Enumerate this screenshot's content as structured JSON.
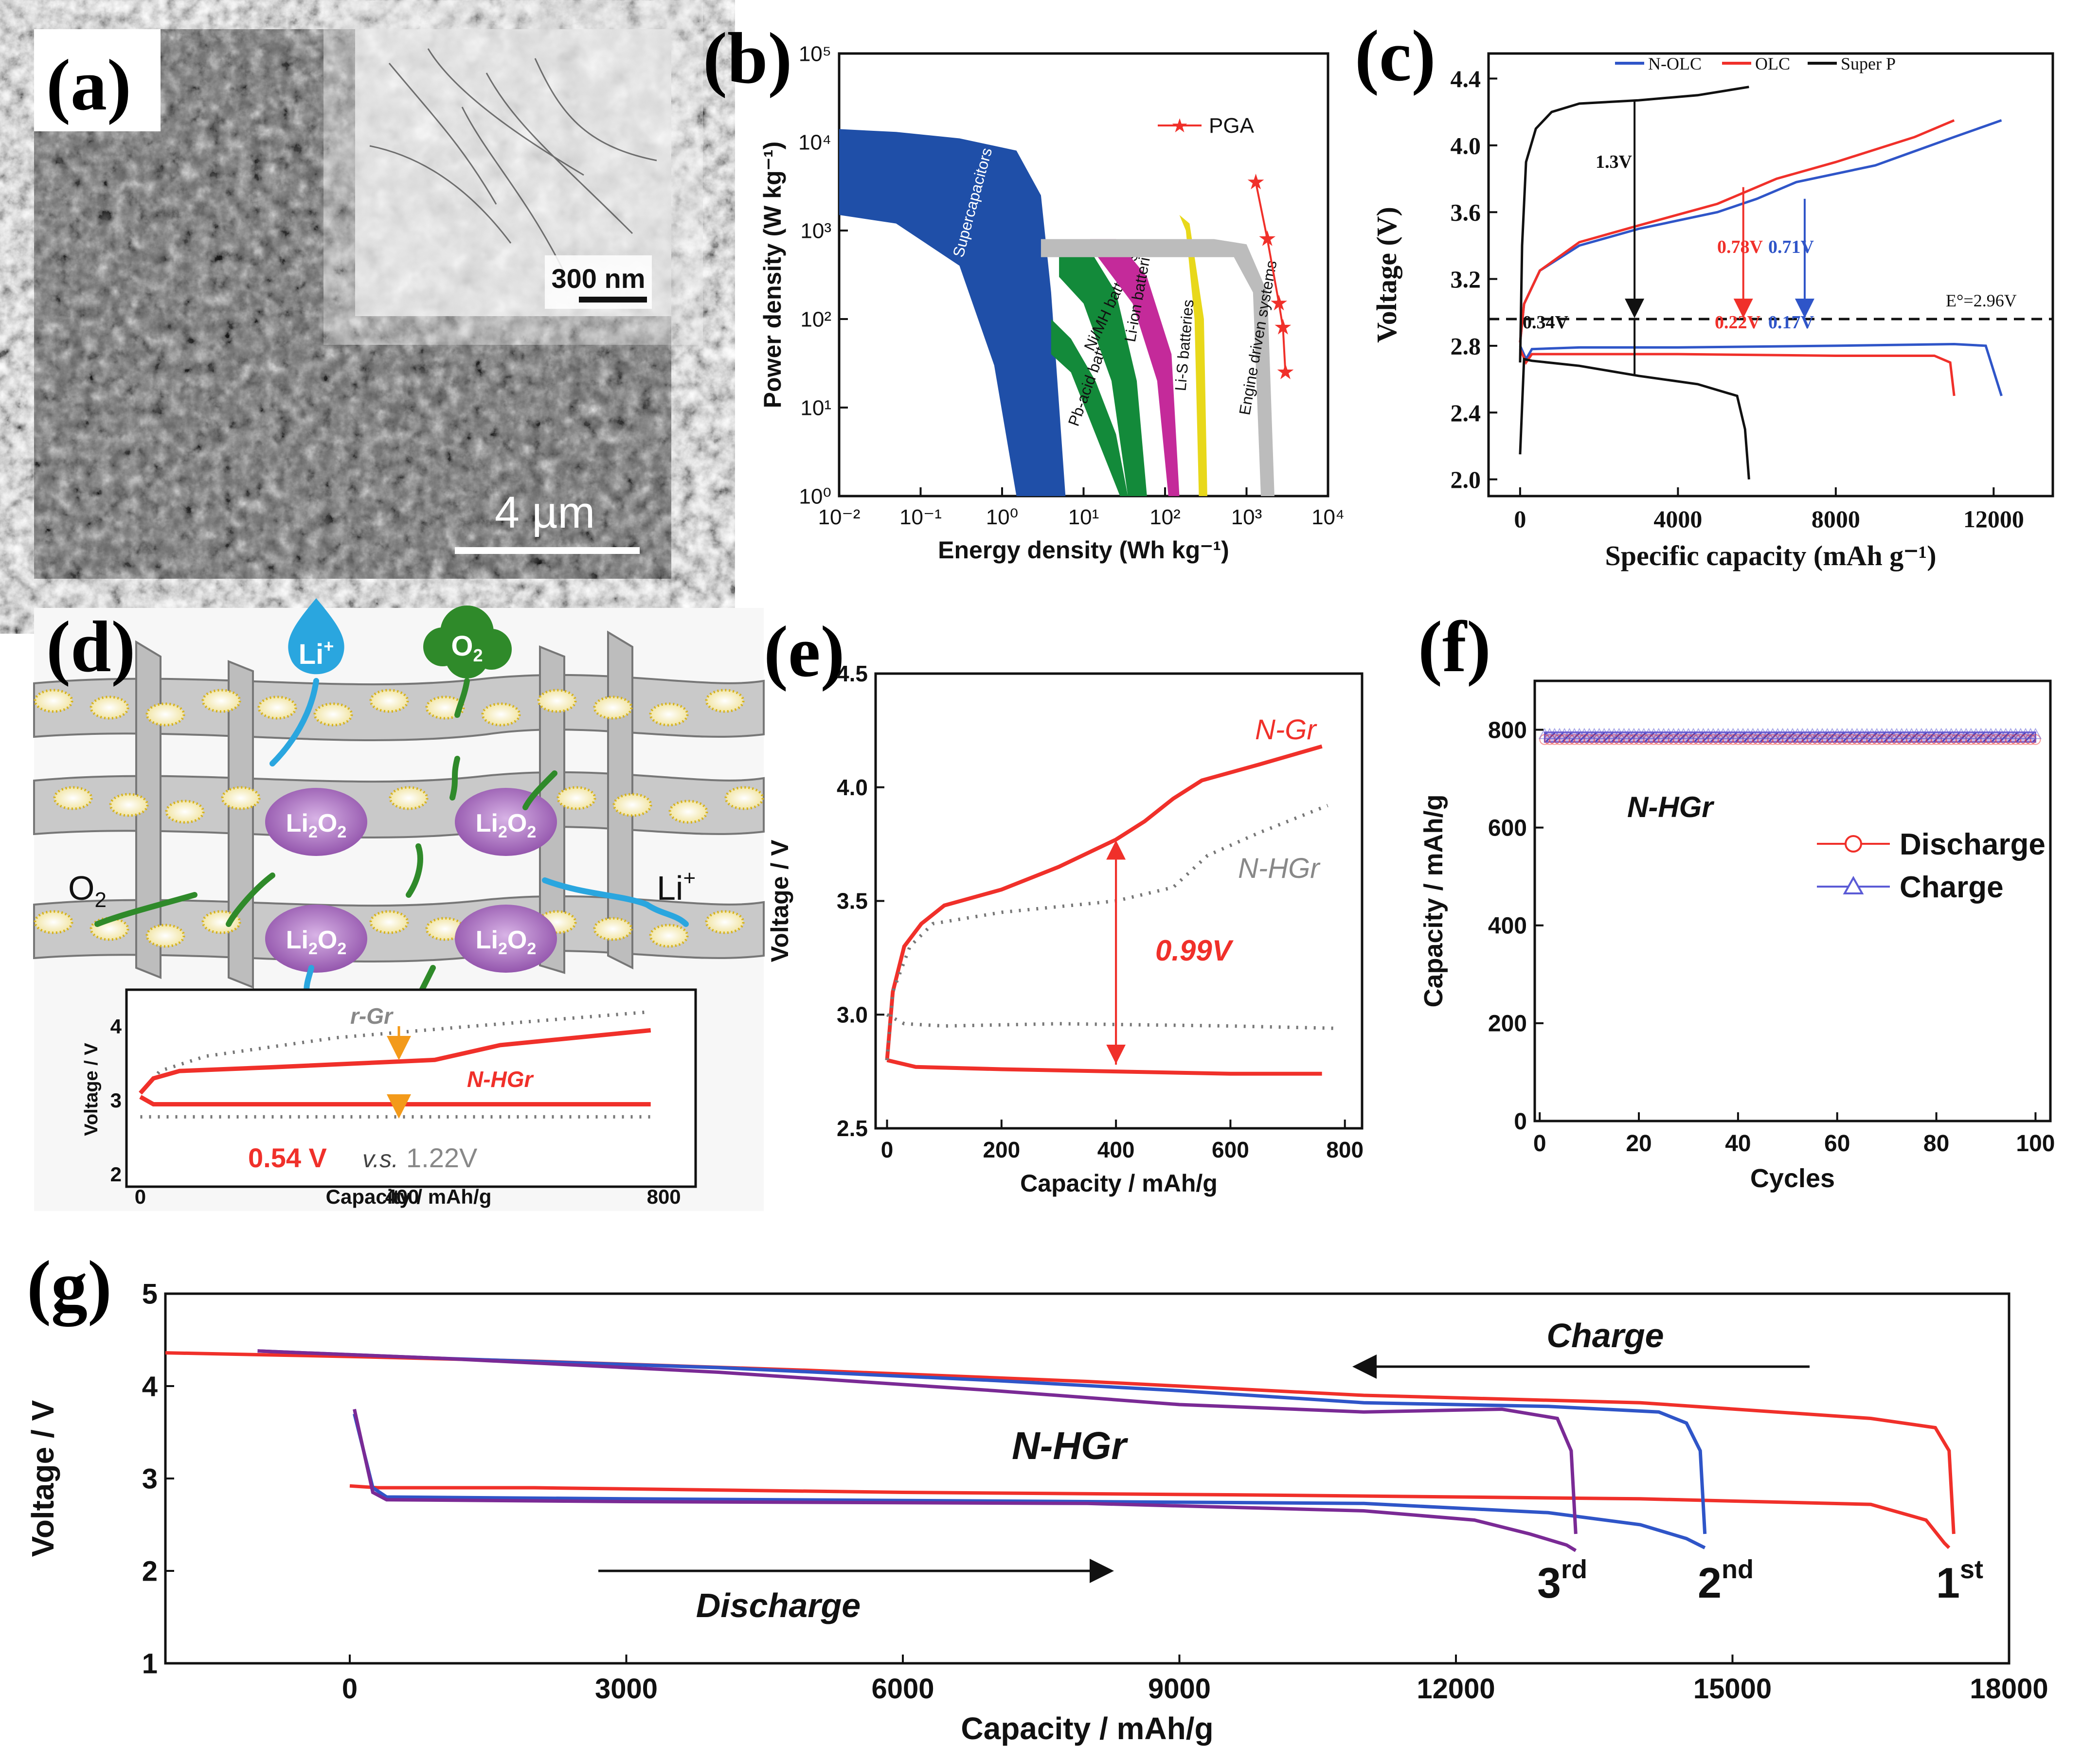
{
  "panel_labels": [
    "(a)",
    "(b)",
    "(c)",
    "(d)",
    "(e)",
    "(f)",
    "(g)"
  ],
  "panel_a": {
    "scale_bar_main": "4 µm",
    "scale_bar_inset": "300 nm"
  },
  "colors": {
    "red": "#f0302a",
    "blue": "#2f55c8",
    "black": "#111111",
    "purple": "#7a2a95",
    "gray": "#777777",
    "supercap": "#1f4fa8",
    "green": "#138a3a",
    "magenta": "#c42a9a",
    "yellow": "#e8d81a",
    "engine_gray": "#bcbcbc",
    "violet_bg": "#b48acb"
  },
  "chart_data": [
    {
      "id": "b",
      "type": "area",
      "xscale": "log",
      "yscale": "log",
      "xlabel": "Energy density (Wh kg⁻¹)",
      "ylabel": "Power density (W kg⁻¹)",
      "xlim": [
        0.01,
        10000
      ],
      "ylim": [
        1,
        100000
      ],
      "xticks": [
        "10⁻²",
        "10⁻¹",
        "10⁰",
        "10¹",
        "10²",
        "10³",
        "10⁴"
      ],
      "yticks": [
        "10⁰",
        "10¹",
        "10²",
        "10³",
        "10⁴",
        "10⁵"
      ],
      "regions": [
        {
          "name": "Supercapacitors",
          "color": "#1f4fa8",
          "points": [
            [
              0.01,
              14000
            ],
            [
              0.05,
              13000
            ],
            [
              0.3,
              11000
            ],
            [
              1.5,
              8000
            ],
            [
              3,
              2500
            ],
            [
              4,
              200
            ],
            [
              6,
              1
            ],
            [
              1.5,
              1
            ],
            [
              0.8,
              30
            ],
            [
              0.3,
              400
            ],
            [
              0.05,
              1200
            ],
            [
              0.01,
              1500
            ]
          ]
        },
        {
          "name": "Pb-acid batteries",
          "color": "#138a3a",
          "points": [
            [
              4,
              100
            ],
            [
              7,
              60
            ],
            [
              14,
              20
            ],
            [
              25,
              5
            ],
            [
              35,
              1
            ],
            [
              28,
              1
            ],
            [
              14,
              5
            ],
            [
              7,
              25
            ],
            [
              4,
              40
            ]
          ]
        },
        {
          "name": "Ni/MH batteries",
          "color": "#138a3a",
          "points": [
            [
              5,
              600
            ],
            [
              12,
              600
            ],
            [
              25,
              200
            ],
            [
              45,
              20
            ],
            [
              60,
              1
            ],
            [
              35,
              1
            ],
            [
              22,
              20
            ],
            [
              10,
              150
            ],
            [
              5,
              300
            ]
          ]
        },
        {
          "name": "Li-ion batteries",
          "color": "#c42a9a",
          "points": [
            [
              12,
              800
            ],
            [
              25,
              800
            ],
            [
              60,
              300
            ],
            [
              120,
              40
            ],
            [
              150,
              1
            ],
            [
              110,
              1
            ],
            [
              80,
              20
            ],
            [
              40,
              150
            ],
            [
              15,
              500
            ]
          ]
        },
        {
          "name": "Li-S batteries",
          "color": "#e8d81a",
          "points": [
            [
              150,
              1500
            ],
            [
              200,
              1200
            ],
            [
              300,
              100
            ],
            [
              330,
              1
            ],
            [
              260,
              1
            ],
            [
              230,
              100
            ],
            [
              180,
              1000
            ]
          ]
        },
        {
          "name": "Engine driven systems",
          "color": "#bcbcbc",
          "points": [
            [
              3,
              800
            ],
            [
              400,
              800
            ],
            [
              1000,
              700
            ],
            [
              1800,
              200
            ],
            [
              2200,
              1
            ],
            [
              1500,
              1
            ],
            [
              1200,
              200
            ],
            [
              700,
              500
            ],
            [
              3,
              500
            ]
          ]
        }
      ],
      "series": [
        {
          "name": "PGA",
          "color": "#f0302a",
          "marker": "star",
          "x": [
            1300,
            1800,
            2500,
            2800,
            3000
          ],
          "y": [
            3500,
            800,
            150,
            80,
            25
          ]
        }
      ],
      "legend": "top-right"
    },
    {
      "id": "c",
      "type": "line",
      "xlabel": "Specific capacity (mAh g⁻¹)",
      "ylabel": "Voltage (V)",
      "xlim": [
        -800,
        13500
      ],
      "ylim": [
        1.9,
        4.55
      ],
      "xticks": [
        0,
        4000,
        8000,
        12000
      ],
      "yticks": [
        2.0,
        2.4,
        2.8,
        3.2,
        3.6,
        4.0,
        4.4
      ],
      "legend_pos": "top-right",
      "series": [
        {
          "name": "N-OLC",
          "color": "#2f55c8",
          "discharge": {
            "x": [
              0,
              150,
              300,
              1500,
              4000,
              8000,
              11000,
              11800,
              12000,
              12200
            ],
            "y": [
              2.8,
              2.72,
              2.78,
              2.79,
              2.79,
              2.8,
              2.81,
              2.8,
              2.65,
              2.5
            ]
          },
          "charge": {
            "x": [
              0,
              100,
              500,
              1500,
              3000,
              5000,
              6000,
              7000,
              9000,
              11000,
              12200
            ],
            "y": [
              2.82,
              3.05,
              3.25,
              3.4,
              3.5,
              3.6,
              3.68,
              3.78,
              3.88,
              4.05,
              4.15
            ]
          }
        },
        {
          "name": "OLC",
          "color": "#f0302a",
          "discharge": {
            "x": [
              0,
              150,
              300,
              1500,
              4000,
              8000,
              10500,
              10900,
              11000
            ],
            "y": [
              2.78,
              2.7,
              2.75,
              2.75,
              2.75,
              2.74,
              2.74,
              2.7,
              2.5
            ]
          },
          "charge": {
            "x": [
              0,
              100,
              500,
              1500,
              3000,
              5000,
              6500,
              8000,
              10000,
              11000
            ],
            "y": [
              2.82,
              3.05,
              3.25,
              3.42,
              3.52,
              3.65,
              3.8,
              3.9,
              4.05,
              4.15
            ]
          }
        },
        {
          "name": "Super P",
          "color": "#111111",
          "discharge": {
            "x": [
              0,
              100,
              300,
              1500,
              3000,
              4500,
              5500,
              5700,
              5800
            ],
            "y": [
              2.15,
              2.72,
              2.71,
              2.68,
              2.62,
              2.57,
              2.5,
              2.3,
              2.0
            ]
          },
          "charge": {
            "x": [
              0,
              50,
              150,
              400,
              800,
              1500,
              3000,
              4500,
              5800
            ],
            "y": [
              2.7,
              3.4,
              3.9,
              4.1,
              4.2,
              4.25,
              4.27,
              4.3,
              4.35
            ]
          }
        }
      ],
      "hline": {
        "y": 2.96,
        "label": "E°=2.96V"
      },
      "annotations": [
        {
          "text": "1.3V",
          "color": "#111111"
        },
        {
          "text": "0.34V",
          "color": "#111111"
        },
        {
          "text": "0.78V",
          "color": "#f0302a"
        },
        {
          "text": "0.22V",
          "color": "#f0302a"
        },
        {
          "text": "0.71V",
          "color": "#2f55c8"
        },
        {
          "text": "0.17V",
          "color": "#2f55c8"
        }
      ]
    },
    {
      "id": "d_inset",
      "type": "line",
      "xlabel": "Capacity / mAh/g",
      "ylabel": "Voltage / V",
      "xlim": [
        -10,
        830
      ],
      "ylim": [
        2,
        4.4
      ],
      "xticks": [
        0,
        400,
        800
      ],
      "yticks": [
        2,
        3,
        4
      ],
      "series": [
        {
          "name": "r-Gr",
          "color": "#777777",
          "dotted": true,
          "charge": {
            "x": [
              0,
              30,
              100,
              300,
              500,
              780
            ],
            "y": [
              3.1,
              3.4,
              3.6,
              3.85,
              4.0,
              4.2
            ]
          },
          "discharge": {
            "x": [
              0,
              100,
              400,
              780
            ],
            "y": [
              2.78,
              2.78,
              2.78,
              2.78
            ]
          }
        },
        {
          "name": "N-HGr",
          "color": "#f0302a",
          "charge": {
            "x": [
              0,
              20,
              60,
              200,
              450,
              550,
              780
            ],
            "y": [
              3.1,
              3.3,
              3.4,
              3.45,
              3.55,
              3.75,
              3.95
            ]
          },
          "discharge": {
            "x": [
              0,
              20,
              200,
              780
            ],
            "y": [
              3.05,
              2.95,
              2.95,
              2.95
            ]
          }
        }
      ],
      "annotations": [
        {
          "text": "0.54 V",
          "color": "#f0302a"
        },
        {
          "text": "v.s.",
          "color": "#444444"
        },
        {
          "text": "1.22V",
          "color": "#888888"
        }
      ]
    },
    {
      "id": "e",
      "type": "line",
      "xlabel": "Capacity / mAh/g",
      "ylabel": "Voltage / V",
      "xlim": [
        -20,
        830
      ],
      "ylim": [
        2.5,
        4.5
      ],
      "xticks": [
        0,
        200,
        400,
        600,
        800
      ],
      "yticks": [
        2.5,
        3.0,
        3.5,
        4.0,
        4.5
      ],
      "series": [
        {
          "name": "N-Gr",
          "color": "#f0302a",
          "charge": {
            "x": [
              0,
              10,
              30,
              60,
              100,
              200,
              300,
              400,
              450,
              500,
              550,
              650,
              760
            ],
            "y": [
              2.8,
              3.1,
              3.3,
              3.4,
              3.48,
              3.55,
              3.65,
              3.77,
              3.85,
              3.95,
              4.03,
              4.1,
              4.18
            ]
          },
          "discharge": {
            "x": [
              0,
              50,
              200,
              400,
              600,
              760
            ],
            "y": [
              2.8,
              2.77,
              2.76,
              2.75,
              2.74,
              2.74
            ]
          }
        },
        {
          "name": "N-HGr",
          "color": "#777777",
          "dotted": true,
          "charge": {
            "x": [
              0,
              10,
              40,
              80,
              200,
              400,
              500,
              560,
              650,
              770
            ],
            "y": [
              2.8,
              3.1,
              3.3,
              3.4,
              3.45,
              3.5,
              3.56,
              3.7,
              3.8,
              3.92
            ]
          },
          "discharge": {
            "x": [
              0,
              30,
              100,
              300,
              600,
              780
            ],
            "y": [
              3.0,
              2.96,
              2.95,
              2.96,
              2.95,
              2.94
            ]
          }
        }
      ],
      "annotations": [
        {
          "text": "0.99V",
          "color": "#f0302a"
        }
      ]
    },
    {
      "id": "f",
      "type": "scatter",
      "xlabel": "Cycles",
      "ylabel": "Capacity / mAh/g",
      "xlim": [
        -1,
        103
      ],
      "ylim": [
        0,
        900
      ],
      "xticks": [
        0,
        20,
        40,
        60,
        80,
        100
      ],
      "yticks": [
        0,
        200,
        400,
        600,
        800
      ],
      "title_in_plot": "N-HGr",
      "legend_pos": "right",
      "series": [
        {
          "name": "Discharge",
          "color": "#f0302a",
          "marker": "circle",
          "x_range": [
            1,
            100
          ],
          "value": 780
        },
        {
          "name": "Charge",
          "color": "#5b5bd6",
          "marker": "triangle",
          "x_range": [
            1,
            100
          ],
          "value": 790
        }
      ]
    },
    {
      "id": "g",
      "type": "line",
      "xlabel": "Capacity / mAh/g",
      "ylabel": "Voltage / V",
      "xlim": [
        -2000,
        18000
      ],
      "ylim": [
        1,
        5
      ],
      "xticks": [
        0,
        3000,
        6000,
        9000,
        12000,
        15000,
        18000
      ],
      "yticks": [
        1,
        2,
        3,
        4,
        5
      ],
      "title_in_plot": "N-HGr",
      "arrows": [
        {
          "text": "Charge",
          "direction": "left"
        },
        {
          "text": "Discharge",
          "direction": "right"
        }
      ],
      "series": [
        {
          "name": "1st",
          "label_main": "1",
          "label_sup": "st",
          "color": "#f0302a",
          "discharge": {
            "x": [
              0,
              300,
              2000,
              6000,
              10000,
              14000,
              16500,
              17100,
              17300,
              17350
            ],
            "y": [
              2.92,
              2.9,
              2.9,
              2.85,
              2.82,
              2.78,
              2.72,
              2.55,
              2.3,
              2.25
            ]
          },
          "charge": {
            "x": [
              17400,
              17350,
              17200,
              16500,
              14000,
              11000,
              8000,
              5000,
              2000,
              0,
              -2000
            ],
            "y": [
              2.4,
              3.3,
              3.55,
              3.65,
              3.82,
              3.9,
              4.05,
              4.17,
              4.27,
              4.32,
              4.36
            ]
          }
        },
        {
          "name": "2nd",
          "label_main": "2",
          "label_sup": "nd",
          "color": "#2f55c8",
          "discharge": {
            "x": [
              50,
              250,
              400,
              3000,
              8000,
              11000,
              13000,
              14000,
              14500,
              14700
            ],
            "y": [
              3.7,
              2.9,
              2.8,
              2.78,
              2.75,
              2.73,
              2.63,
              2.5,
              2.35,
              2.25
            ]
          },
          "charge": {
            "x": [
              14700,
              14650,
              14500,
              14200,
              13000,
              11000,
              9000,
              7000,
              4000,
              1000,
              -1000
            ],
            "y": [
              2.4,
              3.3,
              3.6,
              3.72,
              3.78,
              3.82,
              3.95,
              4.06,
              4.2,
              4.3,
              4.38
            ]
          }
        },
        {
          "name": "3rd",
          "label_main": "3",
          "label_sup": "rd",
          "color": "#7a2a95",
          "discharge": {
            "x": [
              50,
              250,
              400,
              3000,
              8000,
              11000,
              12200,
              12800,
              13200,
              13300
            ],
            "y": [
              3.75,
              2.85,
              2.77,
              2.75,
              2.73,
              2.65,
              2.55,
              2.4,
              2.28,
              2.22
            ]
          },
          "charge": {
            "x": [
              13300,
              13250,
              13100,
              12500,
              11000,
              9000,
              7000,
              4000,
              1000,
              -1000
            ],
            "y": [
              2.4,
              3.3,
              3.65,
              3.75,
              3.72,
              3.8,
              3.95,
              4.15,
              4.3,
              4.38
            ]
          }
        }
      ]
    }
  ]
}
